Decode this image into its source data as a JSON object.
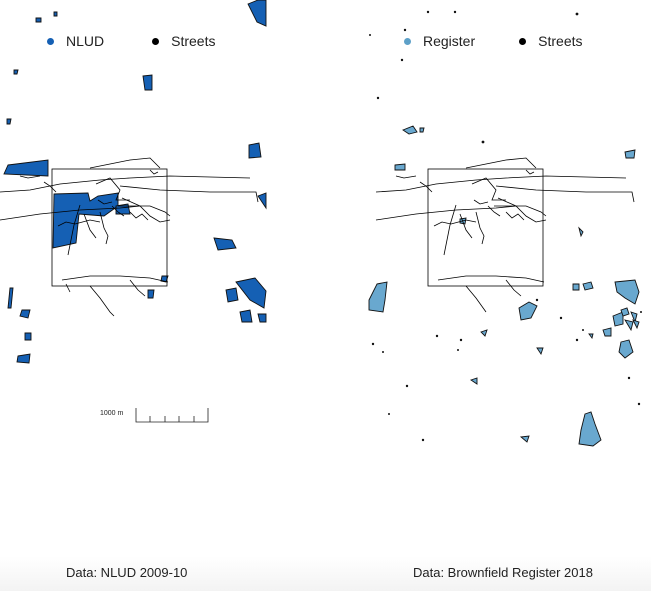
{
  "left_panel": {
    "legend": [
      {
        "label": "NLUD",
        "color": "#1560b4"
      },
      {
        "label": "Streets",
        "color": "#000000"
      }
    ],
    "scale_label": "1000 m",
    "caption": "Data: NLUD 2009-10",
    "fill_color": "#1560b4"
  },
  "right_panel": {
    "legend": [
      {
        "label": "Register",
        "color": "#5da0c8"
      },
      {
        "label": "Streets",
        "color": "#000000"
      }
    ],
    "caption": "Data: Brownfield Register 2018",
    "fill_color": "#69a8cf"
  }
}
